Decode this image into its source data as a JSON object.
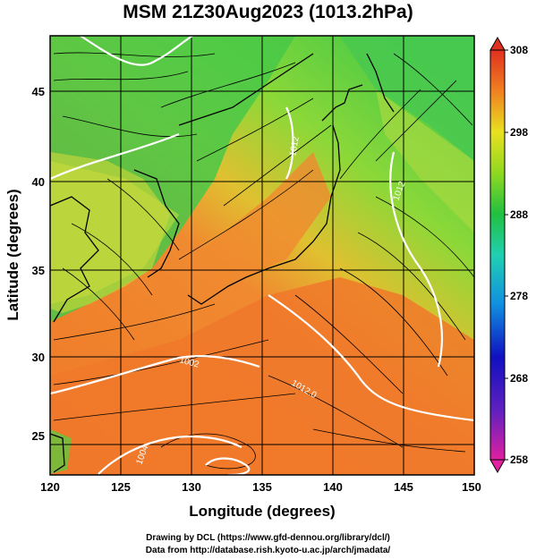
{
  "title": "MSM 21Z30Aug2023 (1013.2hPa)",
  "x_axis": {
    "label": "Longitude (degrees)",
    "ticks": [
      "120",
      "125",
      "130",
      "135",
      "140",
      "145",
      "150"
    ]
  },
  "y_axis": {
    "label": "Latitude  (degrees)",
    "ticks": [
      "25",
      "30",
      "35",
      "40",
      "45"
    ]
  },
  "colorbar": {
    "ticks": [
      "308",
      "298",
      "288",
      "278",
      "268",
      "258"
    ]
  },
  "contour_labels": [
    "1012.0",
    "1012",
    "1012",
    "1004",
    "1002"
  ],
  "footer": {
    "line1": "Drawing by DCL (https://www.gfd-dennou.org/library/dcl/)",
    "line2": "Data from http://database.rish.kyoto-u.ac.jp/arch/jmadata/"
  },
  "colors": {
    "warm": "#f28a2a",
    "mid": "#c8e02a",
    "cool": "#3cc83c",
    "land_line": "#000000",
    "isobar": "#ffffff"
  }
}
